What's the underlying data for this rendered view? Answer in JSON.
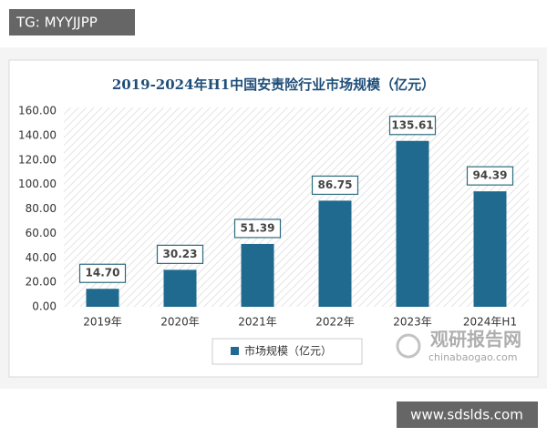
{
  "chart_data": {
    "type": "bar",
    "title": "2019-2024年H1中国安责险行业市场规模（亿元）",
    "categories": [
      "2019年",
      "2020年",
      "2021年",
      "2022年",
      "2023年",
      "2024年H1"
    ],
    "series": [
      {
        "name": "市场规模（亿元）",
        "color": "#1f6a8e",
        "values": [
          14.7,
          30.23,
          51.39,
          86.75,
          135.61,
          94.39
        ],
        "value_labels": [
          "14.70",
          "30.23",
          "51.39",
          "86.75",
          "135.61",
          "94.39"
        ]
      }
    ],
    "ylim": [
      0,
      160
    ],
    "yticks": [
      {
        "value": 0,
        "label": "0.00"
      },
      {
        "value": 20,
        "label": "20.00"
      },
      {
        "value": 40,
        "label": "40.00"
      },
      {
        "value": 60,
        "label": "60.00"
      },
      {
        "value": 80,
        "label": "80.00"
      },
      {
        "value": 100,
        "label": "100.00"
      },
      {
        "value": 120,
        "label": "120.00"
      },
      {
        "value": 140,
        "label": "140.00"
      },
      {
        "value": 160,
        "label": "160.00"
      }
    ],
    "grid": false
  },
  "overlays": {
    "tag": "TG: MYYJJPP",
    "site": "www.sdslds.com",
    "watermark": "观研报告网",
    "watermark_url": "chinabaogao.com"
  }
}
